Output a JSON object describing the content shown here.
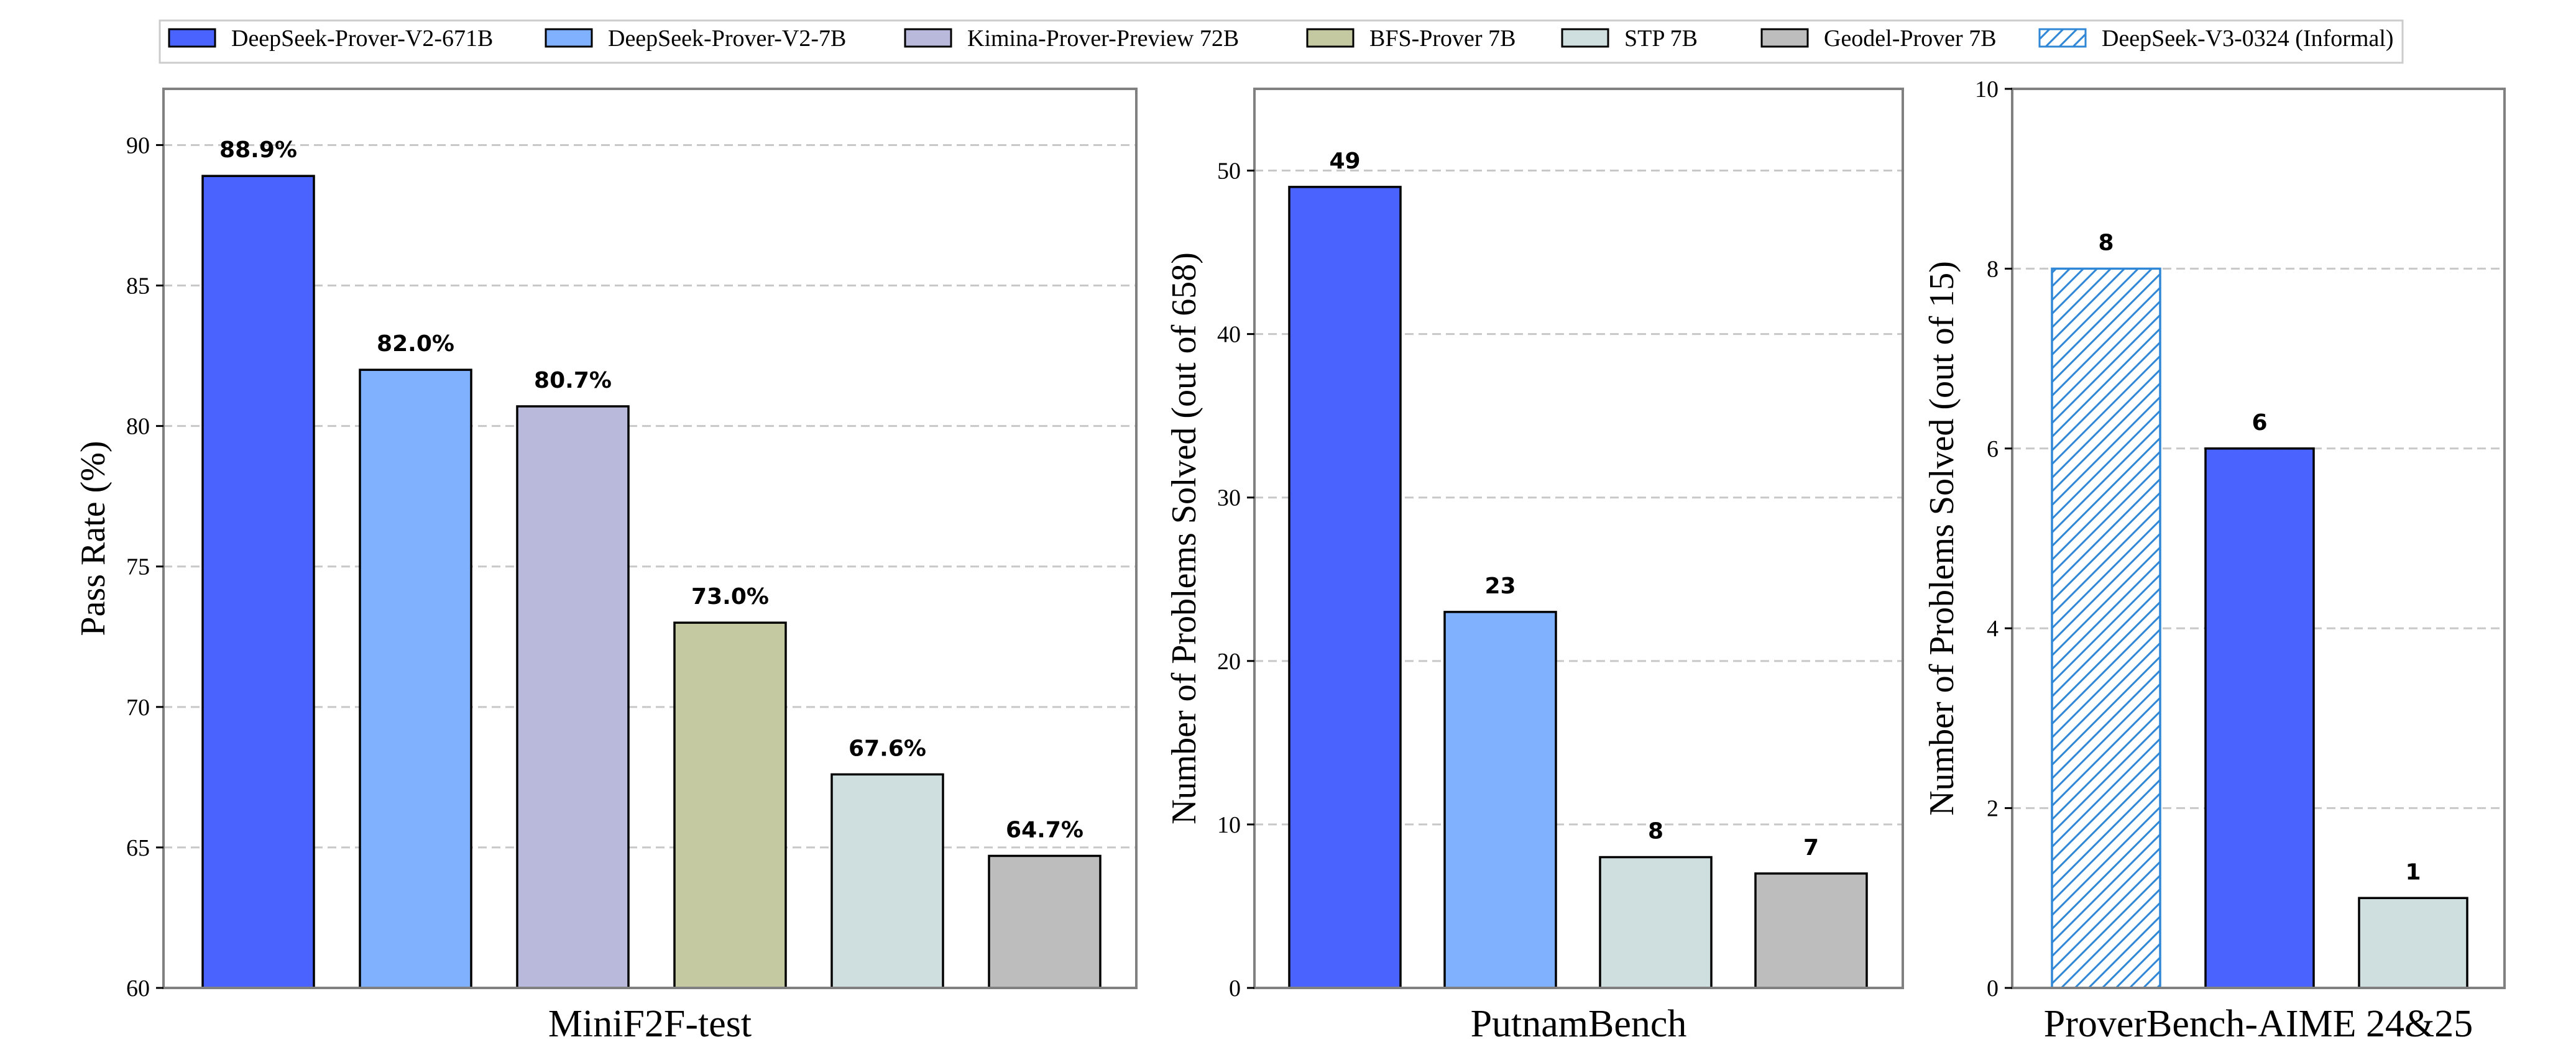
{
  "legend": [
    {
      "label": "DeepSeek-Prover-V2-671B",
      "color": "#4a63ff",
      "hatch": false
    },
    {
      "label": "DeepSeek-Prover-V2-7B",
      "color": "#80b1ff",
      "hatch": false
    },
    {
      "label": "Kimina-Prover-Preview 72B",
      "color": "#b8b9db",
      "hatch": false
    },
    {
      "label": "BFS-Prover 7B",
      "color": "#c4c9a1",
      "hatch": false
    },
    {
      "label": "STP 7B",
      "color": "#cfdfdf",
      "hatch": false
    },
    {
      "label": "Geodel-Prover 7B",
      "color": "#bdbdbd",
      "hatch": false
    },
    {
      "label": "DeepSeek-V3-0324 (Informal)",
      "color": "#2f87d5",
      "hatch": true
    }
  ],
  "chart_data": [
    {
      "type": "bar",
      "xlabel": "MiniF2F-test",
      "ylabel": "Pass Rate (%)",
      "ylim": [
        60,
        92
      ],
      "yticks": [
        60,
        65,
        70,
        75,
        80,
        85,
        90
      ],
      "grid": true,
      "series": [
        {
          "name": "DeepSeek-Prover-V2-671B",
          "value": 88.9,
          "label": "88.9%"
        },
        {
          "name": "DeepSeek-Prover-V2-7B",
          "value": 82.0,
          "label": "82.0%"
        },
        {
          "name": "Kimina-Prover-Preview 72B",
          "value": 80.7,
          "label": "80.7%"
        },
        {
          "name": "BFS-Prover 7B",
          "value": 73.0,
          "label": "73.0%"
        },
        {
          "name": "STP 7B",
          "value": 67.6,
          "label": "67.6%"
        },
        {
          "name": "Geodel-Prover 7B",
          "value": 64.7,
          "label": "64.7%"
        }
      ]
    },
    {
      "type": "bar",
      "xlabel": "PutnamBench",
      "ylabel": "Number of Problems Solved (out of 658)",
      "ylim": [
        0,
        55
      ],
      "yticks": [
        0,
        10,
        20,
        30,
        40,
        50
      ],
      "grid": true,
      "series": [
        {
          "name": "DeepSeek-Prover-V2-671B",
          "value": 49,
          "label": "49"
        },
        {
          "name": "DeepSeek-Prover-V2-7B",
          "value": 23,
          "label": "23"
        },
        {
          "name": "STP 7B",
          "value": 8,
          "label": "8"
        },
        {
          "name": "Geodel-Prover 7B",
          "value": 7,
          "label": "7"
        }
      ]
    },
    {
      "type": "bar",
      "xlabel": "ProverBench-AIME 24&25",
      "ylabel": "Number of Problems Solved (out of 15)",
      "ylim": [
        0,
        10
      ],
      "yticks": [
        0,
        2,
        4,
        6,
        8,
        10
      ],
      "grid": true,
      "series": [
        {
          "name": "DeepSeek-V3-0324 (Informal)",
          "value": 8,
          "label": "8"
        },
        {
          "name": "DeepSeek-Prover-V2-671B",
          "value": 6,
          "label": "6"
        },
        {
          "name": "STP 7B",
          "value": 1,
          "label": "1"
        }
      ]
    }
  ]
}
